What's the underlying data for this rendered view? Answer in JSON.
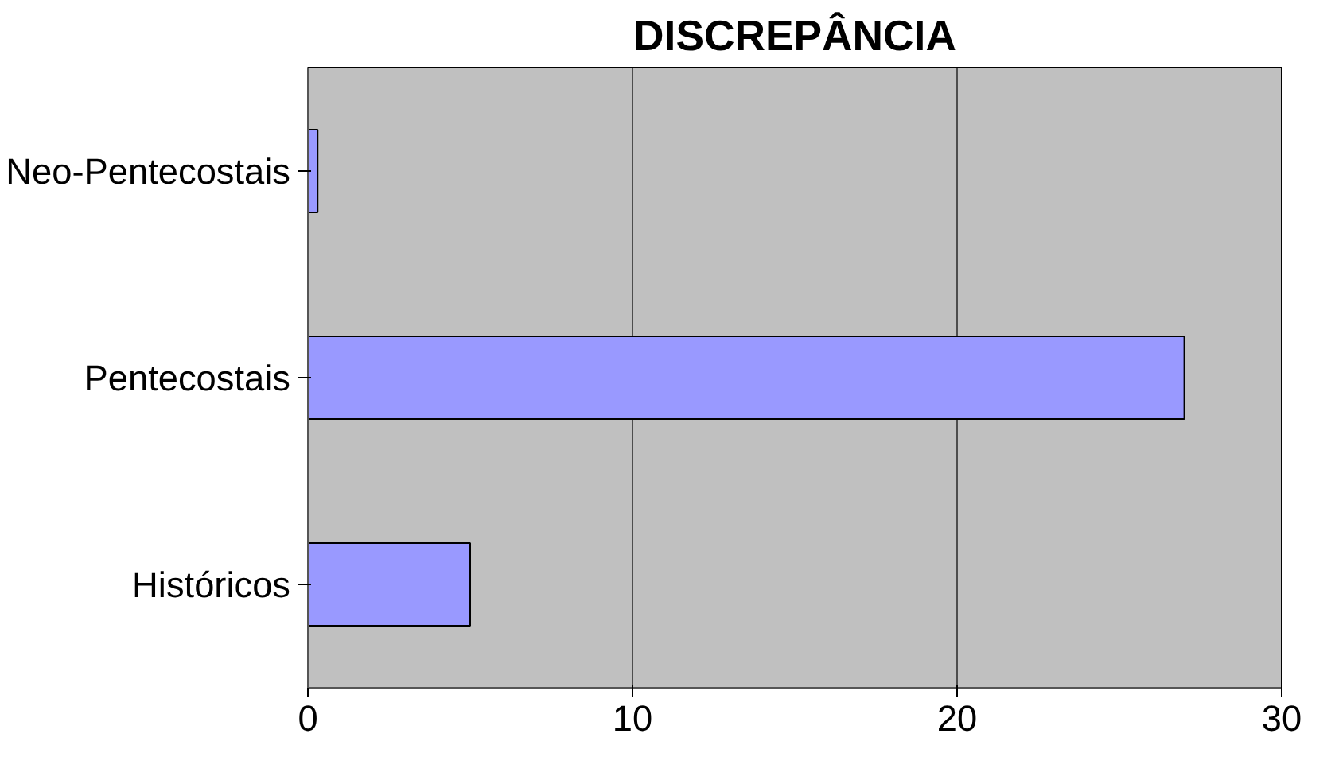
{
  "chart_data": {
    "type": "bar",
    "orientation": "horizontal",
    "title": "DISCREPÂNCIA",
    "categories": [
      "Neo-Pentecostais",
      "Pentecostais",
      "Históricos"
    ],
    "values": [
      0.3,
      27,
      5
    ],
    "color": "#9999ff",
    "xlim": [
      0,
      30
    ],
    "xticks": [
      0,
      10,
      20,
      30
    ],
    "grid": "x"
  }
}
